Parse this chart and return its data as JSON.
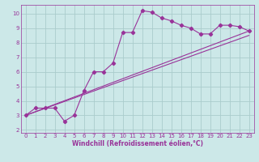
{
  "xlabel": "Windchill (Refroidissement éolien,°C)",
  "background_color": "#cce8e8",
  "grid_color": "#aacccc",
  "line_color": "#993399",
  "xlim": [
    -0.5,
    23.5
  ],
  "ylim": [
    1.8,
    10.6
  ],
  "xticks": [
    0,
    1,
    2,
    3,
    4,
    5,
    6,
    7,
    8,
    9,
    10,
    11,
    12,
    13,
    14,
    15,
    16,
    17,
    18,
    19,
    20,
    21,
    22,
    23
  ],
  "yticks": [
    2,
    3,
    4,
    5,
    6,
    7,
    8,
    9,
    10
  ],
  "line1_x": [
    0,
    1,
    2,
    3,
    4,
    5,
    6,
    7,
    8,
    9,
    10,
    11,
    12,
    13,
    14,
    15,
    16,
    17,
    18,
    19,
    20,
    21,
    22,
    23
  ],
  "line1_y": [
    3.0,
    3.5,
    3.5,
    3.5,
    2.6,
    3.0,
    4.7,
    6.0,
    6.0,
    6.6,
    8.7,
    8.7,
    10.2,
    10.1,
    9.7,
    9.5,
    9.2,
    9.0,
    8.6,
    8.6,
    9.2,
    9.2,
    9.1,
    8.8
  ],
  "line2_x": [
    0,
    23
  ],
  "line2_y": [
    3.0,
    8.8
  ],
  "line3_x": [
    0,
    23
  ],
  "line3_y": [
    3.0,
    8.5
  ]
}
